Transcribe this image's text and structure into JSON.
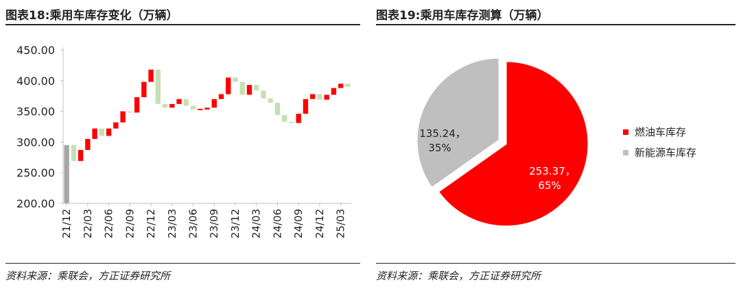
{
  "left": {
    "title": "图表18:乘用车库存变化（万辆）",
    "source": "资料来源：乘联会，方正证券研究所"
  },
  "right": {
    "title": "图表19:乘用车库存测算（万辆）",
    "source": "资料来源：乘联会，方正证券研究所"
  },
  "colors": {
    "increase": "#ff0000",
    "decrease": "#c6e0b4",
    "total": "#a6a6a6",
    "pie_oil": "#ff0000",
    "pie_nev": "#bfbfbf"
  },
  "chart_data": [
    {
      "type": "bar",
      "subtype": "waterfall",
      "ylim": [
        200,
        450
      ],
      "yticks": [
        "200.00",
        "250.00",
        "300.00",
        "350.00",
        "400.00",
        "450.00"
      ],
      "xtick_labels": [
        "21/12",
        "22/03",
        "22/06",
        "22/09",
        "22/12",
        "23/03",
        "23/06",
        "23/09",
        "23/12",
        "24/03",
        "24/06",
        "24/09",
        "24/12",
        "25/03"
      ],
      "categories": [
        "21/12",
        "22/01",
        "22/02",
        "22/03",
        "22/04",
        "22/05",
        "22/06",
        "22/07",
        "22/08",
        "22/09",
        "22/10",
        "22/11",
        "22/12",
        "23/01",
        "23/02",
        "23/03",
        "23/04",
        "23/05",
        "23/06",
        "23/07",
        "23/08",
        "23/09",
        "23/10",
        "23/11",
        "23/12",
        "24/01",
        "24/02",
        "24/03",
        "24/04",
        "24/05",
        "24/06",
        "24/07",
        "24/08",
        "24/09",
        "24/10",
        "24/11",
        "24/12",
        "25/01",
        "25/02",
        "25/03",
        "25/04"
      ],
      "levels": [
        295,
        269,
        287,
        305,
        322,
        310,
        322,
        332,
        350,
        348,
        373,
        398,
        418,
        362,
        356,
        362,
        370,
        359,
        353,
        353,
        356,
        370,
        378,
        405,
        398,
        377,
        393,
        384,
        371,
        364,
        344,
        333,
        331,
        346,
        370,
        378,
        369,
        377,
        388,
        395,
        390
      ],
      "grid": false,
      "legend": "none"
    },
    {
      "type": "pie",
      "labels": [
        "燃油车库存",
        "新能源车库存"
      ],
      "values": [
        253.37,
        135.24
      ],
      "percent_labels": [
        "65%",
        "35%"
      ],
      "value_labels": [
        "253.37，",
        "135.24，"
      ],
      "legend": "right"
    }
  ]
}
